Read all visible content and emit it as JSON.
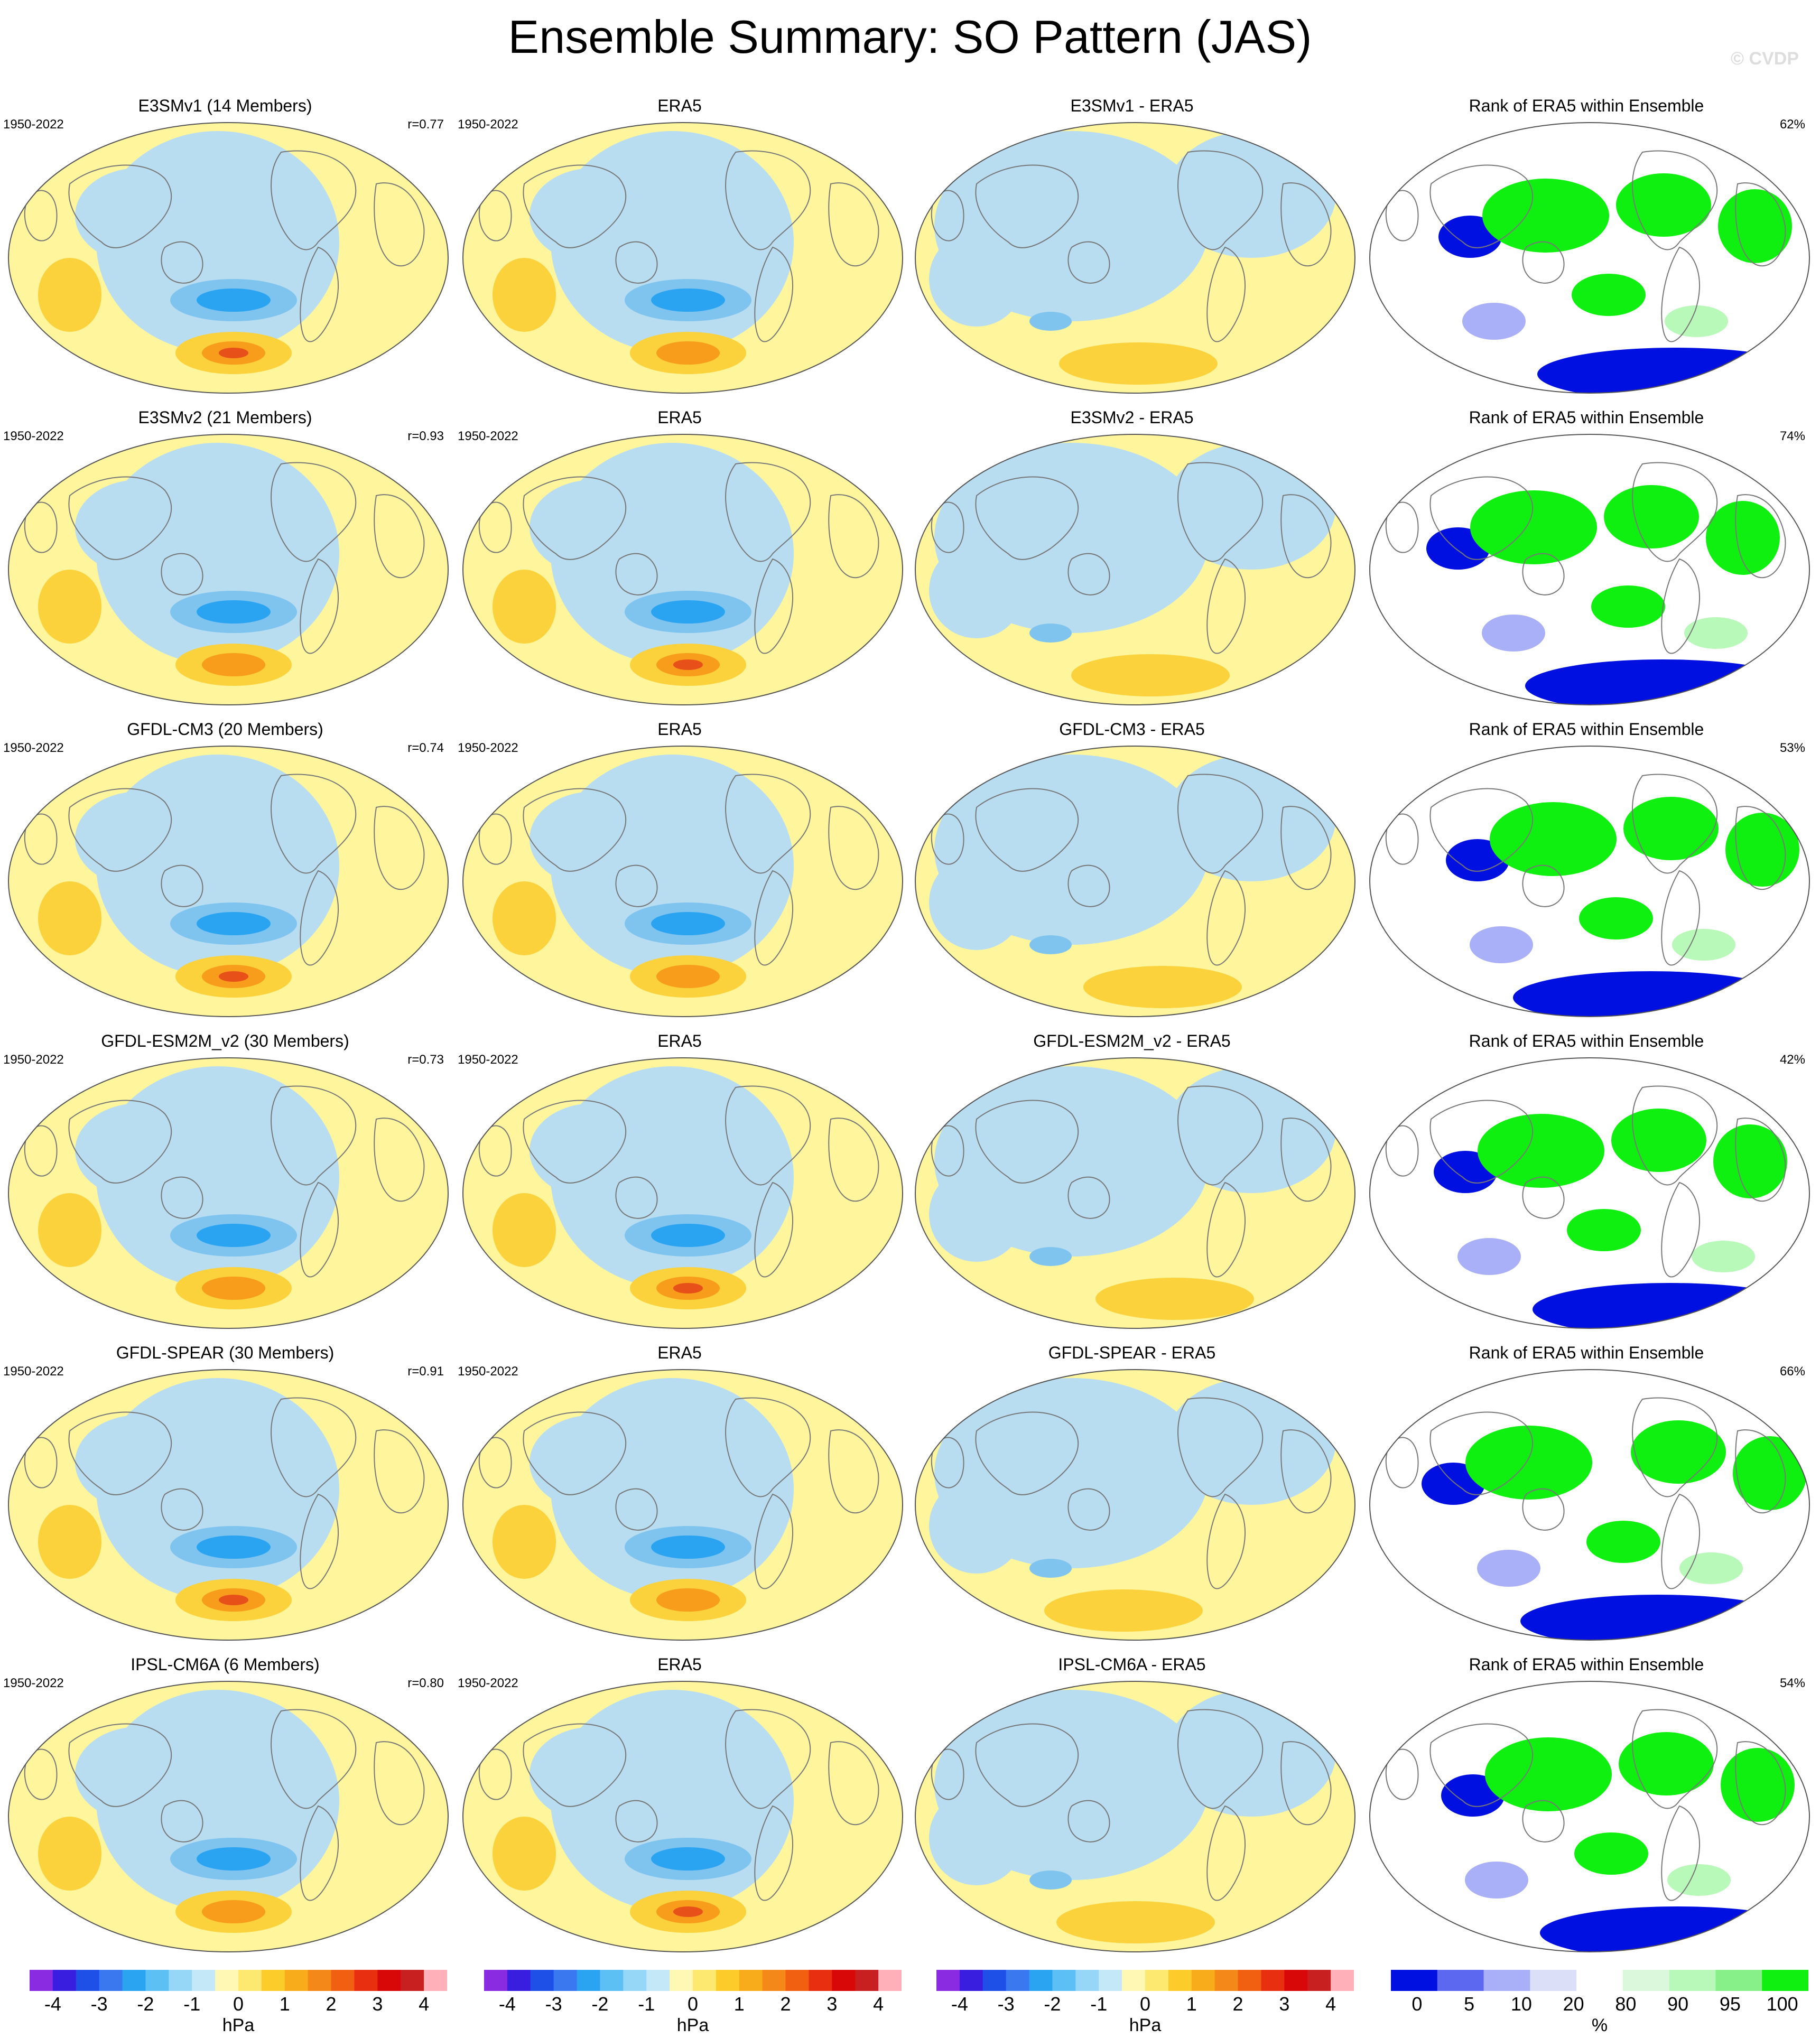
{
  "title": "Ensemble Summary: SO Pattern (JAS)",
  "watermark": "© CVDP",
  "colors": {
    "ocean_fill": "#b8ddf0",
    "land_line": "#777777",
    "warm_weak": "#fff59c",
    "warm_mid": "#fbd23c",
    "warm_strong": "#f89c1c",
    "warm_max": "#e8501a",
    "cool_mid": "#7ec4ee",
    "cool_strong": "#2aa4f0",
    "rank_low": "#0010e0",
    "rank_high": "#10f010",
    "rank_lowmid": "#aab0f8",
    "rank_highmid": "#b8f8b8"
  },
  "rows": [
    {
      "model": {
        "title": "E3SMv1 (14 Members)",
        "period": "1950-2022",
        "corr": "r=0.77"
      },
      "obs": {
        "title": "ERA5",
        "period": "1950-2022"
      },
      "diff": {
        "title": "E3SMv1 - ERA5"
      },
      "rank": {
        "title": "Rank of ERA5 within Ensemble",
        "pct": "62%"
      }
    },
    {
      "model": {
        "title": "E3SMv2 (21 Members)",
        "period": "1950-2022",
        "corr": "r=0.93"
      },
      "obs": {
        "title": "ERA5",
        "period": "1950-2022"
      },
      "diff": {
        "title": "E3SMv2 - ERA5"
      },
      "rank": {
        "title": "Rank of ERA5 within Ensemble",
        "pct": "74%"
      }
    },
    {
      "model": {
        "title": "GFDL-CM3 (20 Members)",
        "period": "1950-2022",
        "corr": "r=0.74"
      },
      "obs": {
        "title": "ERA5",
        "period": "1950-2022"
      },
      "diff": {
        "title": "GFDL-CM3 - ERA5"
      },
      "rank": {
        "title": "Rank of ERA5 within Ensemble",
        "pct": "53%"
      }
    },
    {
      "model": {
        "title": "GFDL-ESM2M_v2 (30 Members)",
        "period": "1950-2022",
        "corr": "r=0.73"
      },
      "obs": {
        "title": "ERA5",
        "period": "1950-2022"
      },
      "diff": {
        "title": "GFDL-ESM2M_v2 - ERA5"
      },
      "rank": {
        "title": "Rank of ERA5 within Ensemble",
        "pct": "42%"
      }
    },
    {
      "model": {
        "title": "GFDL-SPEAR (30 Members)",
        "period": "1950-2022",
        "corr": "r=0.91"
      },
      "obs": {
        "title": "ERA5",
        "period": "1950-2022"
      },
      "diff": {
        "title": "GFDL-SPEAR - ERA5"
      },
      "rank": {
        "title": "Rank of ERA5 within Ensemble",
        "pct": "66%"
      }
    },
    {
      "model": {
        "title": "IPSL-CM6A (6 Members)",
        "period": "1950-2022",
        "corr": "r=0.80"
      },
      "obs": {
        "title": "ERA5",
        "period": "1950-2022"
      },
      "diff": {
        "title": "IPSL-CM6A - ERA5"
      },
      "rank": {
        "title": "Rank of ERA5 within Ensemble",
        "pct": "54%"
      }
    }
  ],
  "colorbars": {
    "hpa": {
      "labels": [
        "-4",
        "-3",
        "-2",
        "-1",
        "0",
        "1",
        "2",
        "3",
        "4"
      ],
      "unit": "hPa",
      "colors": [
        "#8a2be2",
        "#3a1ee0",
        "#1e50e8",
        "#3a78f0",
        "#2aa4f0",
        "#5cc0f4",
        "#96d6f6",
        "#c4e8f8",
        "#fff8b4",
        "#fde870",
        "#fbcc2a",
        "#f8ac1c",
        "#f48818",
        "#f06010",
        "#e83010",
        "#d80808",
        "#c82020",
        "#ffb0b8"
      ]
    },
    "rank": {
      "labels": [
        "0",
        "5",
        "10",
        "20",
        "80",
        "90",
        "95",
        "100"
      ],
      "unit": "%",
      "colors": [
        "#0010e0",
        "#5c68f0",
        "#aab0f8",
        "#dcdff8",
        "#ffffff",
        "#dcf8dc",
        "#b8f8b8",
        "#88f088",
        "#10f010"
      ]
    }
  }
}
